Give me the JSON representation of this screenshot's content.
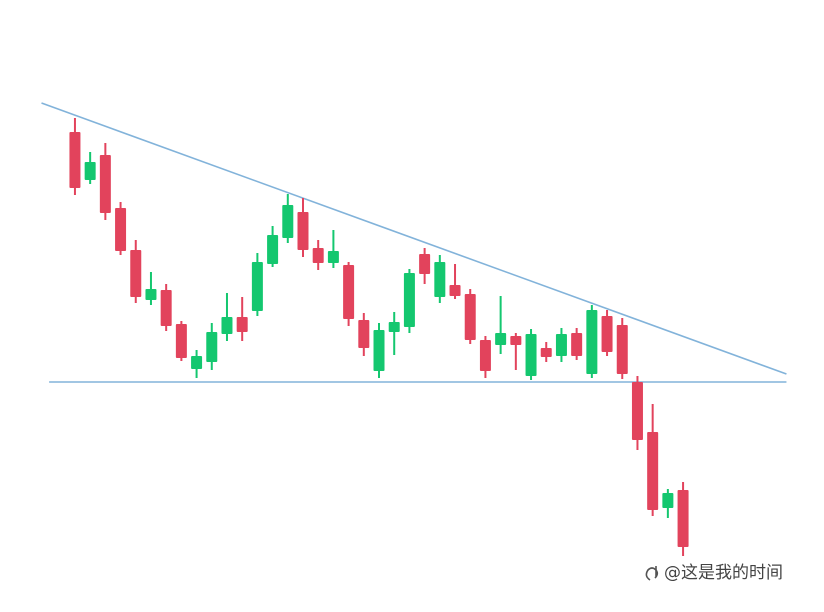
{
  "chart_data": {
    "type": "candlestick",
    "open": [
      468,
      420,
      445,
      392,
      350,
      300,
      310,
      276,
      231,
      238,
      266,
      283,
      289,
      336,
      362,
      388,
      352,
      337,
      335,
      280,
      229,
      268,
      273,
      346,
      303,
      315,
      306,
      260,
      255,
      264,
      224,
      252,
      244,
      267,
      226,
      284,
      275,
      218,
      168,
      92,
      110
    ],
    "high": [
      482,
      448,
      457,
      398,
      360,
      328,
      316,
      279,
      250,
      277,
      307,
      303,
      347,
      374,
      406,
      402,
      360,
      370,
      338,
      287,
      277,
      288,
      331,
      352,
      345,
      336,
      311,
      264,
      304,
      267,
      271,
      258,
      272,
      272,
      295,
      290,
      282,
      224,
      196,
      111,
      118
    ],
    "low": [
      405,
      416,
      380,
      345,
      297,
      295,
      269,
      239,
      222,
      230,
      259,
      259,
      284,
      333,
      357,
      343,
      330,
      332,
      274,
      244,
      222,
      245,
      267,
      316,
      297,
      301,
      256,
      222,
      246,
      230,
      220,
      238,
      238,
      240,
      222,
      244,
      221,
      150,
      84,
      82,
      44
    ],
    "close": [
      412,
      438,
      387,
      349,
      303,
      311,
      274,
      242,
      244,
      268,
      283,
      268,
      338,
      365,
      395,
      350,
      337,
      349,
      281,
      252,
      270,
      278,
      327,
      326,
      338,
      304,
      260,
      229,
      267,
      255,
      266,
      243,
      266,
      244,
      290,
      248,
      226,
      160,
      90,
      107,
      53
    ],
    "up_color": "#14c76f",
    "down_color": "#e2435c",
    "xlim": [
      -4.93,
      49.27
    ],
    "ylim": [
      0,
      600
    ],
    "lines": [
      {
        "x": [
          -2.2,
          46.8
        ],
        "values": [
          497,
          226
        ],
        "color": "#82b3da"
      },
      {
        "x": [
          -1.7,
          46.8
        ],
        "values": [
          218,
          218
        ],
        "color": "#82b3da"
      }
    ],
    "watermark": "@这是我的时间"
  }
}
